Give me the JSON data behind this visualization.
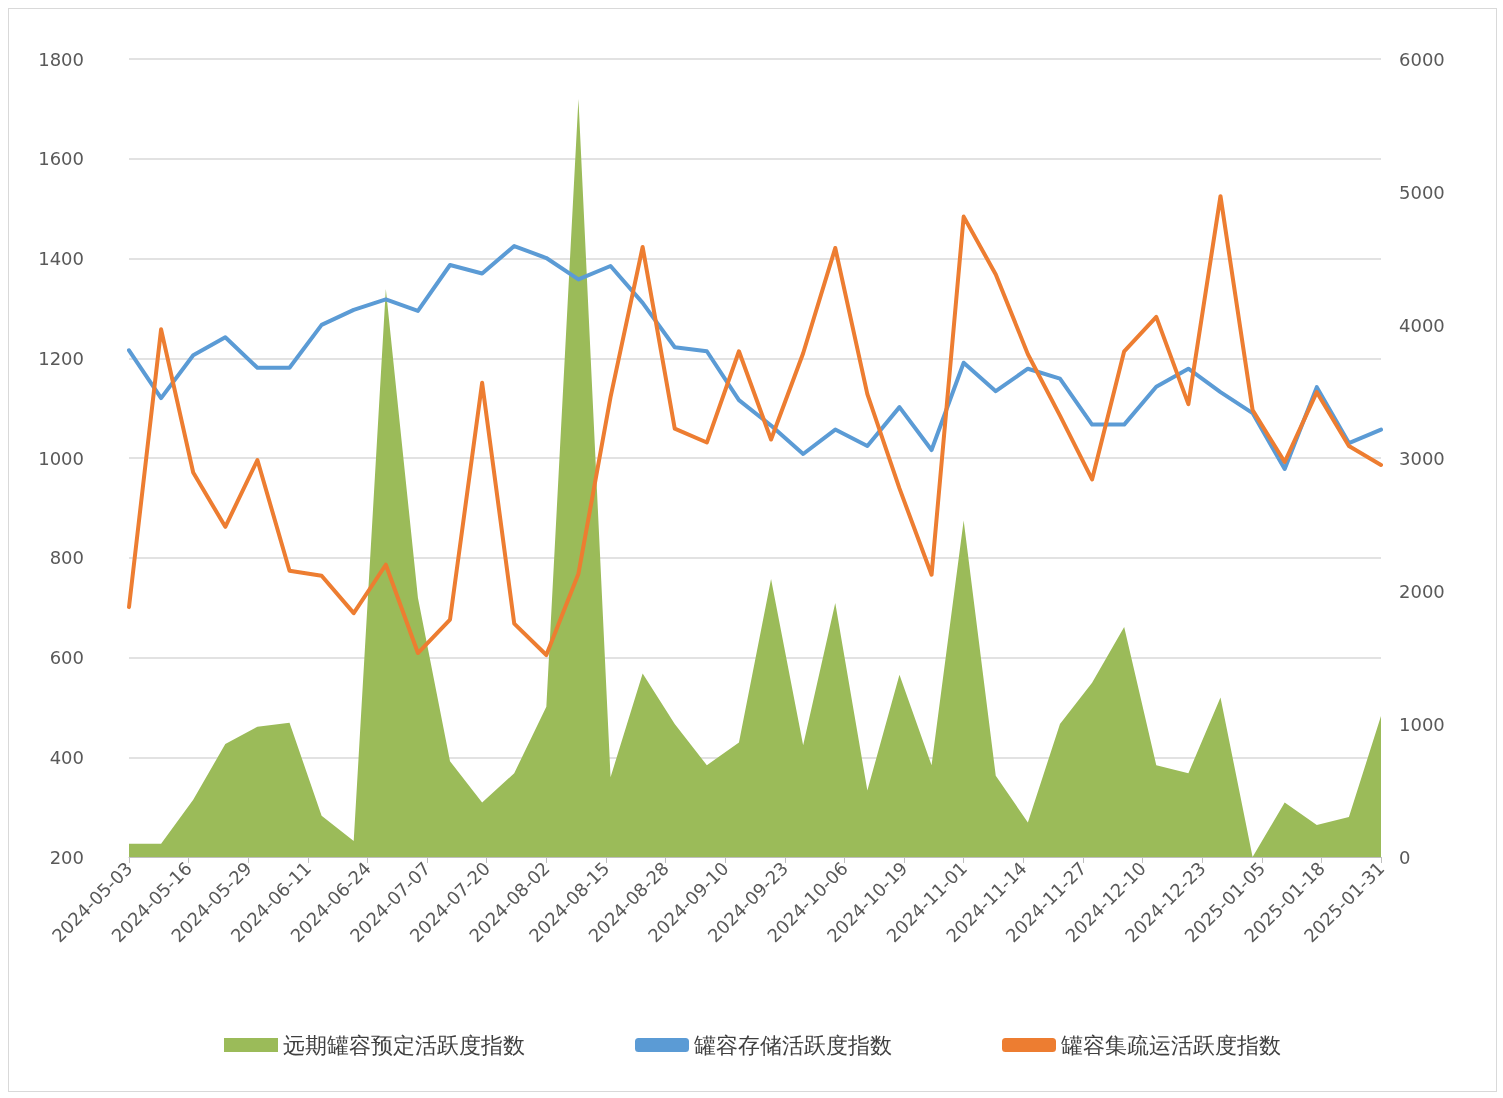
{
  "chart_data": {
    "type": "line",
    "x": [
      "2024-05-03",
      "2024-05-10",
      "2024-05-17",
      "2024-05-24",
      "2024-05-31",
      "2024-06-07",
      "2024-06-14",
      "2024-06-21",
      "2024-06-28",
      "2024-07-05",
      "2024-07-12",
      "2024-07-19",
      "2024-07-26",
      "2024-08-02",
      "2024-08-09",
      "2024-08-16",
      "2024-08-23",
      "2024-08-30",
      "2024-09-06",
      "2024-09-13",
      "2024-09-20",
      "2024-09-27",
      "2024-10-04",
      "2024-10-11",
      "2024-10-18",
      "2024-10-25",
      "2024-11-01",
      "2024-11-08",
      "2024-11-15",
      "2024-11-22",
      "2024-11-29",
      "2024-12-06",
      "2024-12-13",
      "2024-12-20",
      "2024-12-27",
      "2025-01-03",
      "2025-01-10",
      "2025-01-17",
      "2025-01-24",
      "2025-01-31"
    ],
    "series": [
      {
        "name": "远期罐容预定活跃度指数",
        "type": "area",
        "axis": "y2",
        "color": "#9bbb59",
        "values": [
          100,
          100,
          430,
          850,
          980,
          1010,
          310,
          120,
          4270,
          1950,
          720,
          410,
          630,
          1130,
          5700,
          600,
          1380,
          1000,
          690,
          860,
          2090,
          840,
          1910,
          500,
          1370,
          690,
          2530,
          610,
          260,
          1000,
          1310,
          1730,
          690,
          630,
          1200,
          0,
          410,
          240,
          300,
          1060
        ]
      },
      {
        "name": "罐容存储活跃度指数",
        "color": "#5b9bd5",
        "values": [
          1216,
          1120,
          1206,
          1242,
          1181,
          1181,
          1267,
          1297,
          1318,
          1295,
          1387,
          1370,
          1425,
          1401,
          1358,
          1385,
          1311,
          1222,
          1214,
          1116,
          1065,
          1008,
          1057,
          1024,
          1102,
          1016,
          1191,
          1134,
          1179,
          1159,
          1067,
          1067,
          1143,
          1179,
          1132,
          1090,
          978,
          1142,
          1030,
          1057
        ]
      },
      {
        "name": "罐容集疏运活跃度指数",
        "color": "#ed7d31",
        "values": [
          701,
          1258,
          971,
          862,
          996,
          774,
          764,
          689,
          786,
          609,
          676,
          1151,
          668,
          605,
          768,
          1122,
          1423,
          1059,
          1031,
          1214,
          1037,
          1210,
          1421,
          1128,
          939,
          766,
          1484,
          1368,
          1208,
          1085,
          957,
          1214,
          1283,
          1108,
          1525,
          1096,
          992,
          1132,
          1024,
          986
        ]
      }
    ],
    "xlim": [
      "2024-05-03",
      "2025-01-31"
    ],
    "xticks": [
      "2024-05-03",
      "2024-05-16",
      "2024-05-29",
      "2024-06-11",
      "2024-06-24",
      "2024-07-07",
      "2024-07-20",
      "2024-08-02",
      "2024-08-15",
      "2024-08-28",
      "2024-09-10",
      "2024-09-23",
      "2024-10-06",
      "2024-10-19",
      "2024-11-01",
      "2024-11-14",
      "2024-11-27",
      "2024-12-10",
      "2024-12-23",
      "2025-01-05",
      "2025-01-18",
      "2025-01-31"
    ],
    "ylim": [
      200,
      1800
    ],
    "yticks": [
      200,
      400,
      600,
      800,
      1000,
      1200,
      1400,
      1600,
      1800
    ],
    "y2lim": [
      0,
      6000
    ],
    "y2ticks": [
      0,
      1000,
      2000,
      3000,
      4000,
      5000,
      6000
    ],
    "grid": "y",
    "legend": "bottom",
    "marker": "none",
    "line_style": "solid"
  }
}
